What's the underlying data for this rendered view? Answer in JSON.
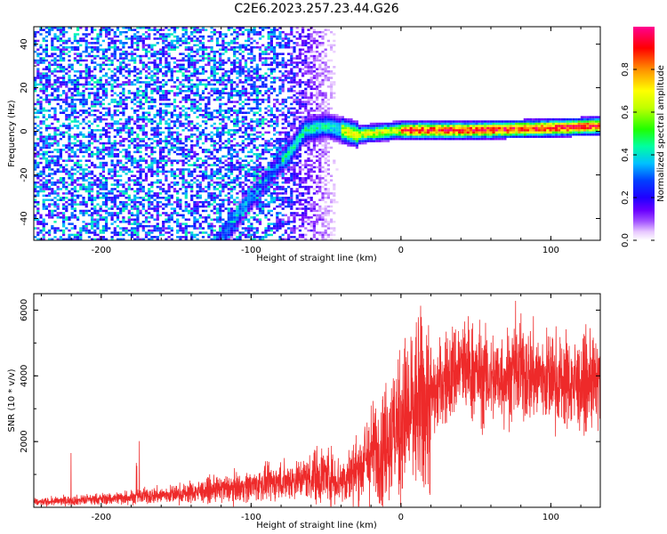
{
  "figure": {
    "title": "C2E6.2023.257.23.44.G26"
  },
  "chart_data": [
    {
      "type": "heatmap",
      "ylabel": "Frequency (Hz)",
      "xlabel": "Height of straight line (km)",
      "xlim": [
        -245,
        133
      ],
      "ylim": [
        -50,
        48
      ],
      "x_ticks": [
        -200,
        -100,
        0,
        100
      ],
      "y_ticks": [
        -40,
        -20,
        0,
        20,
        40
      ],
      "colorbar": {
        "label": "Normalized spectral amplitude",
        "range": [
          0,
          1
        ],
        "ticks": [
          0.0,
          0.2,
          0.4,
          0.6,
          0.8
        ],
        "colormap": [
          "#ffffff",
          "#f0d8ff",
          "#c890ff",
          "#8a2be2",
          "#4b00ff",
          "#0000ff",
          "#00c8ff",
          "#00ff66",
          "#c8ff00",
          "#ffff00",
          "#ff8c00",
          "#ff0000",
          "#ff00a0"
        ]
      },
      "ridge": {
        "description_points": [
          [
            -120,
            -50
          ],
          [
            -105,
            -35
          ],
          [
            -90,
            -22
          ],
          [
            -75,
            -10
          ],
          [
            -65,
            0
          ],
          [
            -50,
            2
          ],
          [
            -30,
            -2
          ],
          [
            0,
            0
          ],
          [
            50,
            0
          ],
          [
            100,
            1
          ],
          [
            133,
            2
          ]
        ]
      },
      "grid": false
    },
    {
      "type": "line",
      "ylabel": "SNR (10 * v/v)",
      "xlabel": "Height of straight line (km)",
      "xlim": [
        -245,
        133
      ],
      "ylim": [
        0,
        6500
      ],
      "x_ticks": [
        -200,
        -100,
        0,
        100
      ],
      "y_ticks": [
        2000,
        4000,
        6000
      ],
      "series": [
        {
          "color": "#ee2a2a",
          "x": [
            -245,
            -200,
            -150,
            -100,
            -70,
            -50,
            -40,
            -30,
            -20,
            -10,
            0,
            10,
            20,
            30,
            40,
            60,
            80,
            100,
            120,
            133
          ],
          "y": [
            150,
            250,
            400,
            650,
            850,
            1000,
            800,
            1100,
            1600,
            2000,
            2600,
            3000,
            3300,
            3900,
            4300,
            3900,
            4100,
            3900,
            3700,
            3800
          ]
        }
      ],
      "grid": false
    }
  ]
}
